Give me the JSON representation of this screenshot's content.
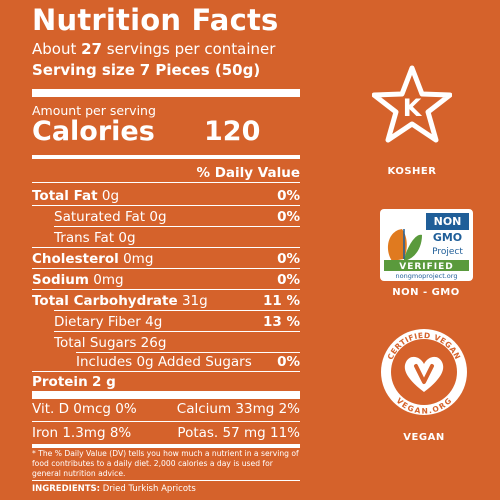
{
  "label": {
    "title": "Nutrition Facts",
    "servings_prefix": "About ",
    "servings_count": "27",
    "servings_suffix": " servings per container",
    "serving_size_label": "Serving size",
    "serving_size_value": "7 Pieces (50g)",
    "amount_per_serving": "Amount per serving",
    "calories_label": "Calories",
    "calories_value": "120",
    "dv_header": "% Daily Value",
    "rows": [
      {
        "name": "Total Fat",
        "amount": "0g",
        "dv": "0%"
      },
      {
        "name": "Saturated Fat",
        "amount": "0g",
        "dv": "0%"
      },
      {
        "name": "Trans Fat",
        "amount": "0g",
        "dv": ""
      },
      {
        "name": "Cholesterol",
        "amount": "0mg",
        "dv": "0%"
      },
      {
        "name": "Sodium",
        "amount": "0mg",
        "dv": "0%"
      },
      {
        "name": "Total Carbohydrate",
        "amount": "31g",
        "dv": "11 %"
      },
      {
        "name": "Dietary Fiber",
        "amount": "4g",
        "dv": "13 %"
      },
      {
        "name": "Total Sugars",
        "amount": "26g",
        "dv": ""
      },
      {
        "name": "Includes 0g Added Sugars",
        "amount": "",
        "dv": "0%"
      },
      {
        "name": "Protein",
        "amount": "2 g",
        "dv": ""
      }
    ],
    "vitamins": [
      {
        "left": "Vit. D 0mcg 0%",
        "right": "Calcium 33mg 2%"
      },
      {
        "left": "Iron 1.3mg 8%",
        "right": "Potas.   57 mg 11%"
      }
    ],
    "footnote": "* The % Daily Value (DV) tells you how much a nutrient in a serving of food contributes to a daily diet. 2,000 calories a day is used for general nutrition advice.",
    "ingredients_label": "INGREDIENTS:",
    "ingredients_value": "Dried Turkish Apricots"
  },
  "badges": {
    "kosher_letter": "K",
    "kosher_label": "KOSHER",
    "nongmo_line1": "NON",
    "nongmo_line2": "GMO",
    "nongmo_line3": "Project",
    "nongmo_verified": "VERIFIED",
    "nongmo_url": "nongmoproject.org",
    "nongmo_label": "NON - GMO",
    "vegan_arc_top": "CERTIFIED VEGAN",
    "vegan_arc_bottom": "VEGAN.ORG",
    "vegan_label": "VEGAN"
  },
  "colors": {
    "background": "#d5622b",
    "foreground": "#ffffff",
    "nongmo_green": "#5a9a3c",
    "nongmo_blue": "#1f5e98",
    "nongmo_orange": "#e07a1f"
  }
}
